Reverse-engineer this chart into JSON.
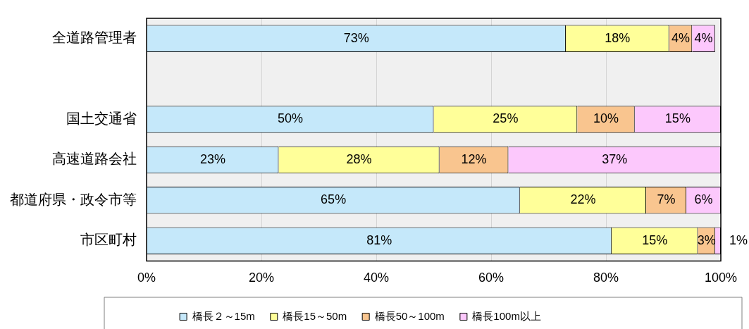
{
  "chart_data": {
    "type": "bar",
    "orientation": "horizontal",
    "stacked": true,
    "categories": [
      "全道路管理者",
      null,
      "国土交通省",
      "高速道路会社",
      "都道府県・政令市等",
      "市区町村"
    ],
    "series": [
      {
        "name": "橋長２～15m",
        "color": "#c5e8fa",
        "values": [
          73,
          null,
          50,
          23,
          65,
          81
        ],
        "value_labels": [
          "73%",
          null,
          "50%",
          "23%",
          "65%",
          "81%"
        ]
      },
      {
        "name": "橋長15～50m",
        "color": "#ffff99",
        "values": [
          18,
          null,
          25,
          28,
          22,
          15
        ],
        "value_labels": [
          "18%",
          null,
          "25%",
          "28%",
          "22%",
          "15%"
        ]
      },
      {
        "name": "橋長50～100m",
        "color": "#f9c58f",
        "values": [
          4,
          null,
          10,
          12,
          7,
          3
        ],
        "value_labels": [
          "4%",
          null,
          "10%",
          "12%",
          "7%",
          "3%"
        ]
      },
      {
        "name": "橋長100m以上",
        "color": "#fcc8fc",
        "values": [
          4,
          null,
          15,
          37,
          6,
          1
        ],
        "value_labels": [
          "4%",
          null,
          "15%",
          "37%",
          "6%",
          "1%"
        ]
      }
    ],
    "xlim": [
      0,
      100
    ],
    "xticks": [
      {
        "value": 0,
        "label": "0%"
      },
      {
        "value": 20,
        "label": "20%"
      },
      {
        "value": 40,
        "label": "40%"
      },
      {
        "value": 60,
        "label": "60%"
      },
      {
        "value": 80,
        "label": "80%"
      },
      {
        "value": 100,
        "label": "100%"
      }
    ],
    "grid": "x",
    "legend": "bottom"
  }
}
